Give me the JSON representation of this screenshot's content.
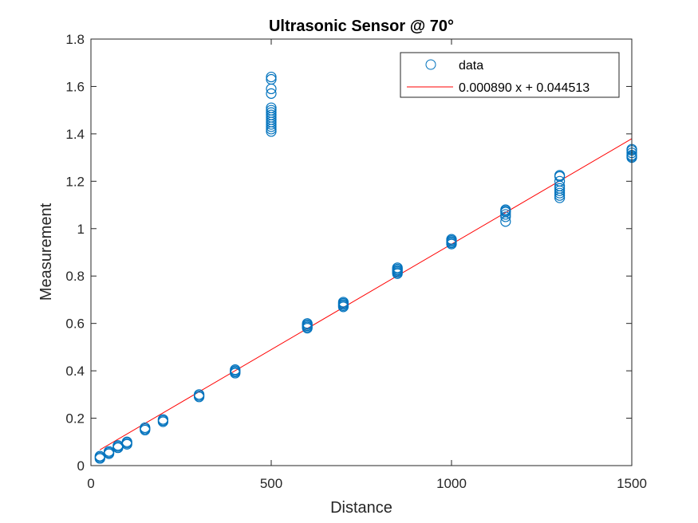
{
  "chart_data": {
    "type": "scatter",
    "title": "Ultrasonic Sensor @ 70°",
    "xlabel": "Distance",
    "ylabel": "Measurement",
    "xlim": [
      0,
      1500
    ],
    "ylim": [
      0,
      1.8
    ],
    "xticks": [
      0,
      500,
      1000,
      1500
    ],
    "xtick_labels": [
      "0",
      "500",
      "1000",
      "1500"
    ],
    "yticks": [
      0,
      0.2,
      0.4,
      0.6,
      0.8,
      1,
      1.2,
      1.4,
      1.6,
      1.8
    ],
    "ytick_labels": [
      "0",
      "0.2",
      "0.4",
      "0.6",
      "0.8",
      "1",
      "1.2",
      "1.4",
      "1.6",
      "1.8"
    ],
    "grid": false,
    "legend_position": "top-right",
    "series": [
      {
        "name": "data",
        "style": "markers",
        "marker": "open-circle",
        "color": "#0072BD",
        "points": [
          [
            25,
            0.03
          ],
          [
            25,
            0.035
          ],
          [
            25,
            0.04
          ],
          [
            50,
            0.05
          ],
          [
            50,
            0.055
          ],
          [
            50,
            0.06
          ],
          [
            75,
            0.075
          ],
          [
            75,
            0.08
          ],
          [
            75,
            0.085
          ],
          [
            100,
            0.09
          ],
          [
            100,
            0.095
          ],
          [
            100,
            0.1
          ],
          [
            150,
            0.15
          ],
          [
            150,
            0.155
          ],
          [
            150,
            0.16
          ],
          [
            200,
            0.185
          ],
          [
            200,
            0.19
          ],
          [
            200,
            0.195
          ],
          [
            300,
            0.29
          ],
          [
            300,
            0.295
          ],
          [
            300,
            0.3
          ],
          [
            400,
            0.39
          ],
          [
            400,
            0.395
          ],
          [
            400,
            0.4
          ],
          [
            400,
            0.405
          ],
          [
            500,
            1.41
          ],
          [
            500,
            1.42
          ],
          [
            500,
            1.43
          ],
          [
            500,
            1.44
          ],
          [
            500,
            1.45
          ],
          [
            500,
            1.46
          ],
          [
            500,
            1.47
          ],
          [
            500,
            1.48
          ],
          [
            500,
            1.49
          ],
          [
            500,
            1.5
          ],
          [
            500,
            1.51
          ],
          [
            500,
            1.57
          ],
          [
            500,
            1.59
          ],
          [
            500,
            1.63
          ],
          [
            500,
            1.64
          ],
          [
            600,
            0.58
          ],
          [
            600,
            0.585
          ],
          [
            600,
            0.59
          ],
          [
            600,
            0.595
          ],
          [
            600,
            0.6
          ],
          [
            700,
            0.67
          ],
          [
            700,
            0.675
          ],
          [
            700,
            0.68
          ],
          [
            700,
            0.685
          ],
          [
            700,
            0.69
          ],
          [
            850,
            0.81
          ],
          [
            850,
            0.815
          ],
          [
            850,
            0.82
          ],
          [
            850,
            0.825
          ],
          [
            850,
            0.83
          ],
          [
            850,
            0.835
          ],
          [
            1000,
            0.935
          ],
          [
            1000,
            0.94
          ],
          [
            1000,
            0.945
          ],
          [
            1000,
            0.95
          ],
          [
            1000,
            0.955
          ],
          [
            1150,
            1.03
          ],
          [
            1150,
            1.05
          ],
          [
            1150,
            1.06
          ],
          [
            1150,
            1.07
          ],
          [
            1150,
            1.075
          ],
          [
            1150,
            1.08
          ],
          [
            1300,
            1.13
          ],
          [
            1300,
            1.14
          ],
          [
            1300,
            1.15
          ],
          [
            1300,
            1.16
          ],
          [
            1300,
            1.17
          ],
          [
            1300,
            1.18
          ],
          [
            1300,
            1.2
          ],
          [
            1300,
            1.22
          ],
          [
            1300,
            1.225
          ],
          [
            1500,
            1.3
          ],
          [
            1500,
            1.305
          ],
          [
            1500,
            1.31
          ],
          [
            1500,
            1.32
          ],
          [
            1500,
            1.33
          ],
          [
            1500,
            1.335
          ]
        ]
      },
      {
        "name": "0.000890 x + 0.044513",
        "style": "line",
        "color": "#FF0000",
        "slope": 0.00089,
        "intercept": 0.044513,
        "x_range": [
          25,
          1500
        ]
      }
    ]
  }
}
